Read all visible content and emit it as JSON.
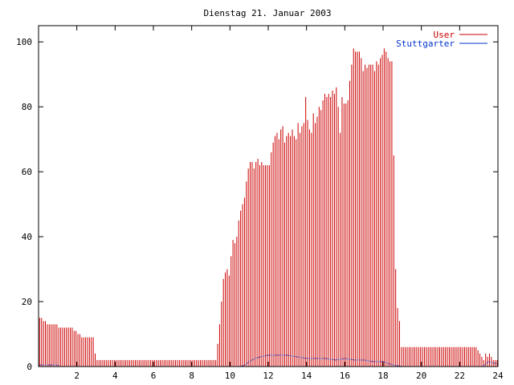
{
  "chart_data": {
    "type": "bar",
    "title": "Dienstag 21. Januar 2003",
    "xlabel": "",
    "ylabel": "",
    "xlim": [
      0,
      24
    ],
    "ylim": [
      0,
      105
    ],
    "x_ticks": [
      2,
      4,
      6,
      8,
      10,
      12,
      14,
      16,
      18,
      20,
      22,
      24
    ],
    "y_ticks": [
      0,
      20,
      40,
      60,
      80,
      100
    ],
    "grid": false,
    "legend_position": "top-right",
    "series": [
      {
        "name": "User",
        "style": "impulses",
        "color": "#cc0000",
        "points": [
          [
            0.1,
            15
          ],
          [
            0.2,
            15
          ],
          [
            0.3,
            14
          ],
          [
            0.4,
            14
          ],
          [
            0.5,
            13
          ],
          [
            0.6,
            13
          ],
          [
            0.7,
            13
          ],
          [
            0.8,
            13
          ],
          [
            0.9,
            13
          ],
          [
            1.0,
            13
          ],
          [
            1.1,
            12
          ],
          [
            1.2,
            12
          ],
          [
            1.3,
            12
          ],
          [
            1.4,
            12
          ],
          [
            1.5,
            12
          ],
          [
            1.6,
            12
          ],
          [
            1.7,
            12
          ],
          [
            1.8,
            12
          ],
          [
            1.9,
            11
          ],
          [
            2.0,
            11
          ],
          [
            2.1,
            10
          ],
          [
            2.2,
            10
          ],
          [
            2.3,
            9
          ],
          [
            2.4,
            9
          ],
          [
            2.5,
            9
          ],
          [
            2.6,
            9
          ],
          [
            2.7,
            9
          ],
          [
            2.8,
            9
          ],
          [
            2.9,
            9
          ],
          [
            3.0,
            4
          ],
          [
            3.1,
            2
          ],
          [
            3.2,
            2
          ],
          [
            3.3,
            2
          ],
          [
            3.4,
            2
          ],
          [
            3.5,
            2
          ],
          [
            3.6,
            2
          ],
          [
            3.7,
            2
          ],
          [
            3.8,
            2
          ],
          [
            3.9,
            2
          ],
          [
            4.0,
            2
          ],
          [
            4.1,
            2
          ],
          [
            4.2,
            2
          ],
          [
            4.3,
            2
          ],
          [
            4.4,
            2
          ],
          [
            4.5,
            2
          ],
          [
            4.6,
            2
          ],
          [
            4.7,
            2
          ],
          [
            4.8,
            2
          ],
          [
            4.9,
            2
          ],
          [
            5.0,
            2
          ],
          [
            5.1,
            2
          ],
          [
            5.2,
            2
          ],
          [
            5.3,
            2
          ],
          [
            5.4,
            2
          ],
          [
            5.5,
            2
          ],
          [
            5.6,
            2
          ],
          [
            5.7,
            2
          ],
          [
            5.8,
            2
          ],
          [
            5.9,
            2
          ],
          [
            6.0,
            2
          ],
          [
            6.1,
            2
          ],
          [
            6.2,
            2
          ],
          [
            6.3,
            2
          ],
          [
            6.4,
            2
          ],
          [
            6.5,
            2
          ],
          [
            6.6,
            2
          ],
          [
            6.7,
            2
          ],
          [
            6.8,
            2
          ],
          [
            6.9,
            2
          ],
          [
            7.0,
            2
          ],
          [
            7.1,
            2
          ],
          [
            7.2,
            2
          ],
          [
            7.3,
            2
          ],
          [
            7.4,
            2
          ],
          [
            7.5,
            2
          ],
          [
            7.6,
            2
          ],
          [
            7.7,
            2
          ],
          [
            7.8,
            2
          ],
          [
            7.9,
            2
          ],
          [
            8.0,
            2
          ],
          [
            8.1,
            2
          ],
          [
            8.2,
            2
          ],
          [
            8.3,
            2
          ],
          [
            8.4,
            2
          ],
          [
            8.5,
            2
          ],
          [
            8.6,
            2
          ],
          [
            8.7,
            2
          ],
          [
            8.8,
            2
          ],
          [
            8.9,
            2
          ],
          [
            9.0,
            2
          ],
          [
            9.1,
            2
          ],
          [
            9.2,
            2
          ],
          [
            9.3,
            2
          ],
          [
            9.4,
            7
          ],
          [
            9.5,
            13
          ],
          [
            9.6,
            20
          ],
          [
            9.7,
            27
          ],
          [
            9.8,
            29
          ],
          [
            9.9,
            30
          ],
          [
            10.0,
            28
          ],
          [
            10.1,
            34
          ],
          [
            10.2,
            39
          ],
          [
            10.3,
            38
          ],
          [
            10.4,
            40
          ],
          [
            10.5,
            45
          ],
          [
            10.6,
            48
          ],
          [
            10.7,
            50
          ],
          [
            10.8,
            52
          ],
          [
            10.9,
            57
          ],
          [
            11.0,
            61
          ],
          [
            11.1,
            63
          ],
          [
            11.2,
            63
          ],
          [
            11.3,
            61
          ],
          [
            11.4,
            63
          ],
          [
            11.5,
            64
          ],
          [
            11.6,
            62
          ],
          [
            11.7,
            63
          ],
          [
            11.8,
            62
          ],
          [
            11.9,
            62
          ],
          [
            12.0,
            62
          ],
          [
            12.1,
            62
          ],
          [
            12.2,
            66
          ],
          [
            12.3,
            69
          ],
          [
            12.4,
            71
          ],
          [
            12.5,
            72
          ],
          [
            12.6,
            70
          ],
          [
            12.7,
            73
          ],
          [
            12.8,
            74
          ],
          [
            12.9,
            69
          ],
          [
            13.0,
            71
          ],
          [
            13.1,
            72
          ],
          [
            13.2,
            71
          ],
          [
            13.3,
            73
          ],
          [
            13.4,
            71
          ],
          [
            13.5,
            70
          ],
          [
            13.6,
            75
          ],
          [
            13.7,
            72
          ],
          [
            13.8,
            74
          ],
          [
            13.9,
            75
          ],
          [
            14.0,
            83
          ],
          [
            14.1,
            76
          ],
          [
            14.2,
            73
          ],
          [
            14.3,
            72
          ],
          [
            14.4,
            78
          ],
          [
            14.5,
            75
          ],
          [
            14.6,
            77
          ],
          [
            14.7,
            80
          ],
          [
            14.8,
            79
          ],
          [
            14.9,
            82
          ],
          [
            15.0,
            84
          ],
          [
            15.1,
            83
          ],
          [
            15.2,
            84
          ],
          [
            15.3,
            83
          ],
          [
            15.4,
            85
          ],
          [
            15.5,
            84
          ],
          [
            15.6,
            86
          ],
          [
            15.7,
            80
          ],
          [
            15.8,
            72
          ],
          [
            15.9,
            83
          ],
          [
            16.0,
            81
          ],
          [
            16.1,
            81
          ],
          [
            16.2,
            82
          ],
          [
            16.3,
            88
          ],
          [
            16.4,
            93
          ],
          [
            16.5,
            98
          ],
          [
            16.6,
            97
          ],
          [
            16.7,
            97
          ],
          [
            16.8,
            97
          ],
          [
            16.9,
            95
          ],
          [
            17.0,
            91
          ],
          [
            17.1,
            93
          ],
          [
            17.2,
            92
          ],
          [
            17.3,
            93
          ],
          [
            17.4,
            93
          ],
          [
            17.5,
            93
          ],
          [
            17.6,
            91
          ],
          [
            17.7,
            94
          ],
          [
            17.8,
            93
          ],
          [
            17.9,
            95
          ],
          [
            18.0,
            96
          ],
          [
            18.1,
            98
          ],
          [
            18.2,
            97
          ],
          [
            18.3,
            95
          ],
          [
            18.4,
            94
          ],
          [
            18.5,
            94
          ],
          [
            18.6,
            65
          ],
          [
            18.7,
            30
          ],
          [
            18.8,
            18
          ],
          [
            18.9,
            14
          ],
          [
            19.0,
            6
          ],
          [
            19.1,
            6
          ],
          [
            19.2,
            6
          ],
          [
            19.3,
            6
          ],
          [
            19.4,
            6
          ],
          [
            19.5,
            6
          ],
          [
            19.6,
            6
          ],
          [
            19.7,
            6
          ],
          [
            19.8,
            6
          ],
          [
            19.9,
            6
          ],
          [
            20.0,
            6
          ],
          [
            20.1,
            6
          ],
          [
            20.2,
            6
          ],
          [
            20.3,
            6
          ],
          [
            20.4,
            6
          ],
          [
            20.5,
            6
          ],
          [
            20.6,
            6
          ],
          [
            20.7,
            6
          ],
          [
            20.8,
            6
          ],
          [
            20.9,
            6
          ],
          [
            21.0,
            6
          ],
          [
            21.1,
            6
          ],
          [
            21.2,
            6
          ],
          [
            21.3,
            6
          ],
          [
            21.4,
            6
          ],
          [
            21.5,
            6
          ],
          [
            21.6,
            6
          ],
          [
            21.7,
            6
          ],
          [
            21.8,
            6
          ],
          [
            21.9,
            6
          ],
          [
            22.0,
            6
          ],
          [
            22.1,
            6
          ],
          [
            22.2,
            6
          ],
          [
            22.3,
            6
          ],
          [
            22.4,
            6
          ],
          [
            22.5,
            6
          ],
          [
            22.6,
            6
          ],
          [
            22.7,
            6
          ],
          [
            22.8,
            6
          ],
          [
            22.9,
            6
          ],
          [
            23.0,
            5
          ],
          [
            23.1,
            4
          ],
          [
            23.2,
            3
          ],
          [
            23.3,
            2
          ],
          [
            23.4,
            4
          ],
          [
            23.5,
            3
          ],
          [
            23.6,
            4
          ],
          [
            23.7,
            3
          ],
          [
            23.8,
            2
          ],
          [
            23.9,
            2
          ],
          [
            24.0,
            2
          ]
        ]
      },
      {
        "name": "Stuttgarter",
        "style": "lines",
        "color": "#0033cc",
        "points": [
          [
            0,
            0.5
          ],
          [
            1,
            0.5
          ],
          [
            1.05,
            0
          ],
          [
            10.5,
            0
          ],
          [
            10.8,
            0.5
          ],
          [
            11.0,
            1.5
          ],
          [
            11.3,
            2.5
          ],
          [
            11.6,
            3.0
          ],
          [
            12.0,
            3.5
          ],
          [
            12.5,
            3.5
          ],
          [
            13.0,
            3.5
          ],
          [
            13.5,
            3.0
          ],
          [
            14.0,
            2.5
          ],
          [
            14.5,
            2.5
          ],
          [
            15.0,
            2.5
          ],
          [
            15.5,
            2.0
          ],
          [
            16.0,
            2.5
          ],
          [
            16.5,
            2.0
          ],
          [
            17.0,
            2.0
          ],
          [
            17.5,
            1.5
          ],
          [
            18.0,
            1.5
          ],
          [
            18.5,
            0.5
          ],
          [
            19.0,
            0
          ],
          [
            23.2,
            0
          ],
          [
            23.5,
            1.5
          ],
          [
            23.8,
            1.0
          ],
          [
            24,
            1.0
          ]
        ]
      }
    ]
  }
}
